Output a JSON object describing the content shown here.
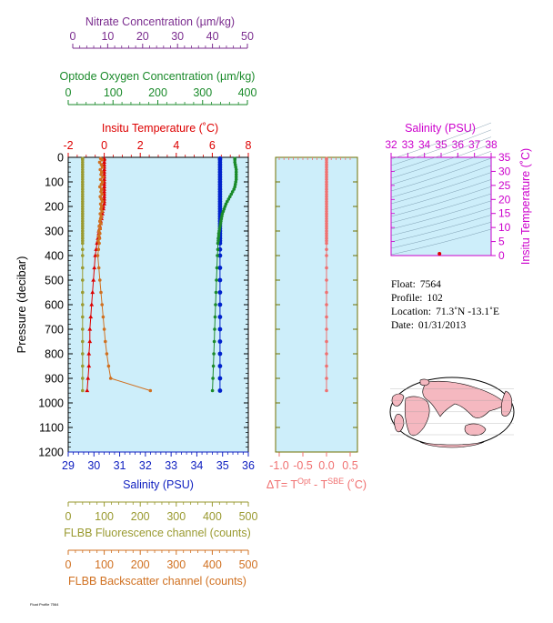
{
  "colors": {
    "panel_bg": "#cdeefa",
    "black": "#000000",
    "nitrate": "#7b2d8f",
    "oxygen": "#1a8a2a",
    "temperature": "#dd0000",
    "salinity_axis": "#1020c0",
    "salinity": "#0022cc",
    "delta": "#f07070",
    "fluorescence": "#9a9a30",
    "backscatter": "#d07020",
    "ts_axis": "#cc00cc",
    "olive_frame": "#707000",
    "map_land": "#f5b8c0",
    "map_ocean": "#ffffff"
  },
  "axes": {
    "nitrate": {
      "title": "Nitrate Concentration (µm/kg)",
      "ticks": [
        "0",
        "10",
        "20",
        "30",
        "40",
        "50"
      ],
      "range": [
        0,
        50
      ]
    },
    "oxygen": {
      "title": "Optode Oxygen Concentration (µm/kg)",
      "ticks": [
        "0",
        "100",
        "200",
        "300",
        "400"
      ],
      "range": [
        0,
        400
      ]
    },
    "temperature": {
      "title": "Insitu Temperature (˚C)",
      "ticks": [
        "-2",
        "0",
        "2",
        "4",
        "6",
        "8"
      ],
      "range": [
        -2,
        8
      ]
    },
    "salinity": {
      "title": "Salinity (PSU)",
      "ticks": [
        "29",
        "30",
        "31",
        "32",
        "33",
        "34",
        "35",
        "36"
      ],
      "range": [
        29,
        36
      ]
    },
    "pressure": {
      "title": "Pressure (decibar)",
      "ticks": [
        "0",
        "100",
        "200",
        "300",
        "400",
        "500",
        "600",
        "700",
        "800",
        "900",
        "1000",
        "1100",
        "1200"
      ],
      "range": [
        0,
        1200
      ]
    },
    "delta": {
      "title_main": "ΔT= T",
      "title_sup1": "Opt",
      "title_mid": " - T",
      "title_sup2": "SBE",
      "title_end": " (˚C)",
      "ticks": [
        "-1.0",
        "-0.5",
        "0.0",
        "0.5"
      ],
      "range": [
        -1.0,
        0.5
      ]
    },
    "fluorescence": {
      "title": "FLBB Fluorescence channel (counts)",
      "ticks": [
        "0",
        "100",
        "200",
        "300",
        "400",
        "500"
      ],
      "range": [
        0,
        500
      ]
    },
    "backscatter": {
      "title": "FLBB Backscatter channel (counts)",
      "ticks": [
        "0",
        "100",
        "200",
        "300",
        "400",
        "500"
      ],
      "range": [
        0,
        500
      ]
    },
    "ts_salinity": {
      "title": "Salinity (PSU)",
      "ticks": [
        "32",
        "33",
        "34",
        "35",
        "36",
        "37",
        "38"
      ],
      "range": [
        32,
        38
      ]
    },
    "ts_temperature": {
      "title": "Insitu Temperature (˚C)",
      "ticks": [
        "0",
        "5",
        "10",
        "15",
        "20",
        "25",
        "30",
        "35"
      ],
      "range": [
        0,
        35
      ]
    }
  },
  "info": {
    "float_label": "Float:",
    "float_value": "7564",
    "profile_label": "Profile:",
    "profile_value": "102",
    "location_label": "Location:",
    "location_value": "71.3˚N  -13.1˚E",
    "date_label": "Date:",
    "date_value": "01/31/2013"
  },
  "chart_data": {
    "type": "line",
    "pressure_levels": [
      5,
      10,
      20,
      30,
      40,
      50,
      60,
      70,
      80,
      90,
      100,
      110,
      120,
      130,
      140,
      150,
      160,
      170,
      180,
      190,
      200,
      210,
      220,
      230,
      240,
      250,
      260,
      270,
      280,
      290,
      300,
      310,
      320,
      330,
      340,
      350,
      375,
      400,
      450,
      500,
      550,
      600,
      650,
      700,
      750,
      800,
      850,
      900,
      950
    ],
    "series": [
      {
        "name": "Temperature",
        "axis": "temperature",
        "values": [
          0.0,
          0.0,
          0.0,
          0.0,
          0.0,
          0.0,
          0.0,
          0.0,
          0.0,
          0.0,
          0.0,
          0.0,
          0.0,
          0.0,
          0.0,
          0.0,
          0.0,
          0.0,
          0.0,
          0.0,
          -0.05,
          -0.05,
          -0.1,
          -0.1,
          -0.15,
          -0.15,
          -0.2,
          -0.2,
          -0.25,
          -0.25,
          -0.3,
          -0.3,
          -0.3,
          -0.35,
          -0.35,
          -0.4,
          -0.45,
          -0.5,
          -0.55,
          -0.6,
          -0.65,
          -0.7,
          -0.75,
          -0.8,
          -0.8,
          -0.85,
          -0.85,
          -0.9,
          -0.95
        ]
      },
      {
        "name": "Salinity",
        "axis": "salinity",
        "values": [
          34.9,
          34.9,
          34.9,
          34.9,
          34.9,
          34.9,
          34.9,
          34.9,
          34.9,
          34.9,
          34.9,
          34.9,
          34.9,
          34.9,
          34.9,
          34.9,
          34.9,
          34.9,
          34.9,
          34.9,
          34.9,
          34.9,
          34.9,
          34.9,
          34.9,
          34.9,
          34.9,
          34.9,
          34.9,
          34.9,
          34.9,
          34.9,
          34.9,
          34.9,
          34.9,
          34.9,
          34.9,
          34.9,
          34.9,
          34.9,
          34.9,
          34.9,
          34.9,
          34.9,
          34.9,
          34.9,
          34.9,
          34.9,
          34.9
        ]
      },
      {
        "name": "Oxygen",
        "axis": "oxygen",
        "values": [
          372,
          372,
          372,
          373,
          374,
          375,
          375,
          375,
          375,
          375,
          374,
          373,
          372,
          370,
          367,
          364,
          361,
          358,
          355,
          352,
          350,
          348,
          346,
          344,
          343,
          342,
          341,
          340,
          339,
          338,
          337,
          336,
          336,
          335,
          335,
          334,
          334,
          333,
          332,
          331,
          330,
          329,
          328,
          327,
          326,
          325,
          324,
          323,
          322
        ]
      },
      {
        "name": "Fluorescence",
        "axis": "fluorescence",
        "values": [
          40,
          40,
          40,
          40,
          40,
          40,
          40,
          40,
          40,
          40,
          40,
          40,
          40,
          40,
          40,
          40,
          40,
          40,
          40,
          40,
          40,
          40,
          40,
          40,
          40,
          40,
          40,
          40,
          40,
          40,
          40,
          40,
          40,
          40,
          40,
          40,
          40,
          40,
          40,
          40,
          40,
          40,
          40,
          40,
          40,
          40,
          40,
          40,
          40
        ]
      },
      {
        "name": "Backscatter",
        "axis": "backscatter",
        "values": [
          90,
          94,
          87,
          92,
          95,
          89,
          93,
          91,
          96,
          90,
          95,
          92,
          88,
          93,
          91,
          94,
          89,
          92,
          95,
          90,
          93,
          91,
          94,
          89,
          92,
          90,
          88,
          91,
          86,
          89,
          85,
          88,
          84,
          87,
          83,
          86,
          84,
          82,
          85,
          88,
          91,
          94,
          97,
          100,
          103,
          107,
          112,
          118,
          228
        ]
      },
      {
        "name": "DeltaT",
        "axis": "delta",
        "values": [
          0.0,
          0.0,
          0.0,
          0.0,
          0.0,
          0.0,
          0.0,
          0.0,
          0.0,
          0.0,
          0.0,
          0.0,
          0.0,
          0.0,
          0.0,
          0.0,
          0.0,
          0.0,
          0.0,
          0.0,
          0.0,
          0.0,
          0.0,
          0.0,
          0.0,
          0.0,
          0.0,
          0.0,
          0.0,
          0.0,
          0.0,
          0.0,
          0.0,
          0.0,
          0.0,
          0.0,
          0.0,
          0.0,
          0.0,
          0.0,
          0.0,
          0.0,
          0.0,
          0.0,
          0.0,
          0.0,
          0.0,
          0.0,
          0.0
        ]
      }
    ],
    "ts_point": {
      "salinity": 34.9,
      "temperature": -0.5
    }
  }
}
